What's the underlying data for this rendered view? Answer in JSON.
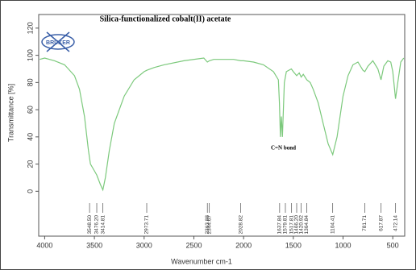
{
  "chart_data": {
    "type": "line",
    "title": "Silica-functionalized cobalt(II) acetate",
    "logo": "BRUKER",
    "xlabel": "Wavenumber cm-1",
    "ylabel": "Transmittance [%]",
    "annotation": {
      "text": "C=N bond",
      "x": 1600
    },
    "xlim": [
      4060,
      380
    ],
    "ylim": [
      -33,
      130
    ],
    "x_reversed": true,
    "xticks": [
      4000,
      3500,
      3000,
      2500,
      2000,
      1500,
      1000,
      500
    ],
    "yticks": [
      0,
      20,
      40,
      60,
      80,
      100,
      120
    ],
    "series": [
      {
        "name": "Transmittance",
        "color": "#7cc97c",
        "x": [
          4050,
          4000,
          3900,
          3800,
          3700,
          3650,
          3600,
          3560,
          3540,
          3500,
          3476,
          3440,
          3415,
          3390,
          3350,
          3300,
          3200,
          3100,
          3000,
          2973,
          2900,
          2800,
          2600,
          2400,
          2364,
          2344,
          2300,
          2100,
          2029,
          2000,
          1900,
          1800,
          1700,
          1650,
          1640,
          1630,
          1620,
          1610,
          1600,
          1590,
          1570,
          1520,
          1500,
          1466,
          1440,
          1421,
          1400,
          1365,
          1330,
          1300,
          1250,
          1200,
          1150,
          1104,
          1060,
          1000,
          950,
          900,
          850,
          800,
          781,
          750,
          700,
          650,
          618,
          590,
          550,
          520,
          500,
          472,
          450,
          420,
          390
        ],
        "values": [
          97,
          98,
          96,
          93,
          85,
          75,
          55,
          30,
          20,
          15,
          12,
          5,
          1,
          10,
          30,
          50,
          70,
          82,
          88,
          89,
          91,
          93,
          96,
          98,
          95,
          96,
          97,
          97,
          96,
          96,
          95,
          93,
          88,
          82,
          65,
          40,
          55,
          40,
          60,
          80,
          88,
          90,
          88,
          85,
          87,
          84,
          86,
          82,
          80,
          75,
          65,
          50,
          35,
          27,
          40,
          70,
          85,
          93,
          95,
          89,
          88,
          92,
          96,
          90,
          82,
          92,
          96,
          95,
          88,
          68,
          80,
          95,
          98
        ]
      }
    ],
    "peaks": [
      {
        "value": 3548.5,
        "label": "3548.50"
      },
      {
        "value": 3476.2,
        "label": "3476.20"
      },
      {
        "value": 3414.81,
        "label": "3414.81"
      },
      {
        "value": 2973.71,
        "label": "2973.71"
      },
      {
        "value": 2363.88,
        "label": "2363.88"
      },
      {
        "value": 2344.67,
        "label": "2344.67"
      },
      {
        "value": 2028.82,
        "label": "2028.82"
      },
      {
        "value": 1637.84,
        "label": "1637.84"
      },
      {
        "value": 1579.81,
        "label": "1579.81"
      },
      {
        "value": 1517.81,
        "label": "1517.81"
      },
      {
        "value": 1466.2,
        "label": "1466.20"
      },
      {
        "value": 1420.92,
        "label": "1420.92"
      },
      {
        "value": 1364.84,
        "label": "1364.84"
      },
      {
        "value": 1104.41,
        "label": "1104.41"
      },
      {
        "value": 781.71,
        "label": "781.71"
      },
      {
        "value": 617.87,
        "label": "617.87"
      },
      {
        "value": 472.14,
        "label": "472.14"
      }
    ]
  }
}
